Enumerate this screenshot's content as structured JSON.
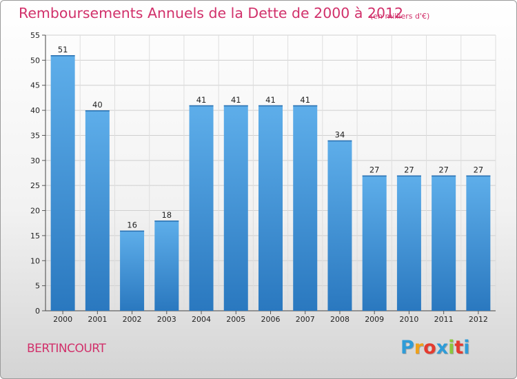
{
  "chart_data": {
    "type": "bar",
    "title": "Remboursements Annuels de la Dette de 2000 à 2012",
    "unit_note": "(en milliers d'€)",
    "categories": [
      "2000",
      "2001",
      "2002",
      "2003",
      "2004",
      "2005",
      "2006",
      "2007",
      "2008",
      "2009",
      "2010",
      "2011",
      "2012"
    ],
    "values": [
      51,
      40,
      16,
      18,
      41,
      41,
      41,
      41,
      34,
      27,
      27,
      27,
      27
    ],
    "ylim": [
      0,
      55
    ],
    "yticks": [
      0,
      5,
      10,
      15,
      20,
      25,
      30,
      35,
      40,
      45,
      50,
      55
    ],
    "grid": true,
    "bar_color": "#3d8fd6"
  },
  "footer": {
    "city": "BERTINCOURT",
    "logo_letters": [
      "P",
      "r",
      "o",
      "x",
      "i",
      "t",
      "i"
    ],
    "logo_colors": [
      "#2e9cd8",
      "#f0a11a",
      "#e43b2f",
      "#2e9cd8",
      "#8cc63e",
      "#e43b2f",
      "#2e9cd8"
    ]
  }
}
